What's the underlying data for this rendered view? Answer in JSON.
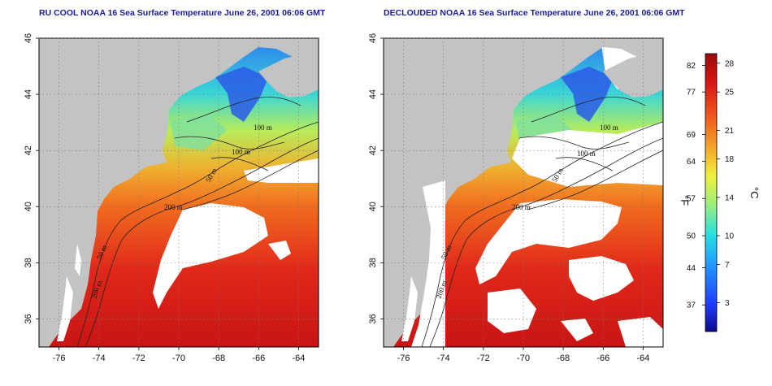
{
  "panels": [
    {
      "title": "RU COOL NOAA 16 Sea Surface Temperature June 26, 2001 06:06 GMT",
      "cloud_masked": false,
      "contour_labels": [
        "100 m",
        "100 m",
        "50 m",
        "200 m",
        "50 m",
        "200 m"
      ]
    },
    {
      "title": "DECLOUDED NOAA 16 Sea Surface Temperature June 26, 2001 06:06 GMT",
      "cloud_masked": true,
      "contour_labels": [
        "100 m",
        "100 m",
        "50 m",
        "200 m",
        "50 m",
        "200 m"
      ]
    }
  ],
  "axes": {
    "lat_ticks": [
      "46",
      "44",
      "42",
      "40",
      "38",
      "36"
    ],
    "lon_ticks": [
      "-76",
      "-74",
      "-72",
      "-70",
      "-68",
      "-66",
      "-64"
    ],
    "lat_range": [
      35,
      46
    ],
    "lon_range": [
      -77,
      -63
    ],
    "grid": "dotted"
  },
  "colorbar": {
    "unit_left": "°F",
    "unit_right": "°C",
    "fahrenheit_ticks": [
      "82",
      "77",
      "69",
      "64",
      "57",
      "50",
      "44",
      "37"
    ],
    "celsius_ticks": [
      "28",
      "25",
      "21",
      "18",
      "14",
      "10",
      "7",
      "3"
    ],
    "range_c": [
      0,
      29
    ],
    "colors": [
      "#0a0a8c",
      "#1e3cff",
      "#22a0ff",
      "#28e0e0",
      "#9ef07a",
      "#f0f03c",
      "#f4a62a",
      "#f05a1e",
      "#d61414",
      "#9a0a0a"
    ]
  },
  "colors": {
    "land": "#c3c3c3",
    "cloud": "#ffffff",
    "contour": "#222222",
    "title": "#1a1a9c"
  }
}
